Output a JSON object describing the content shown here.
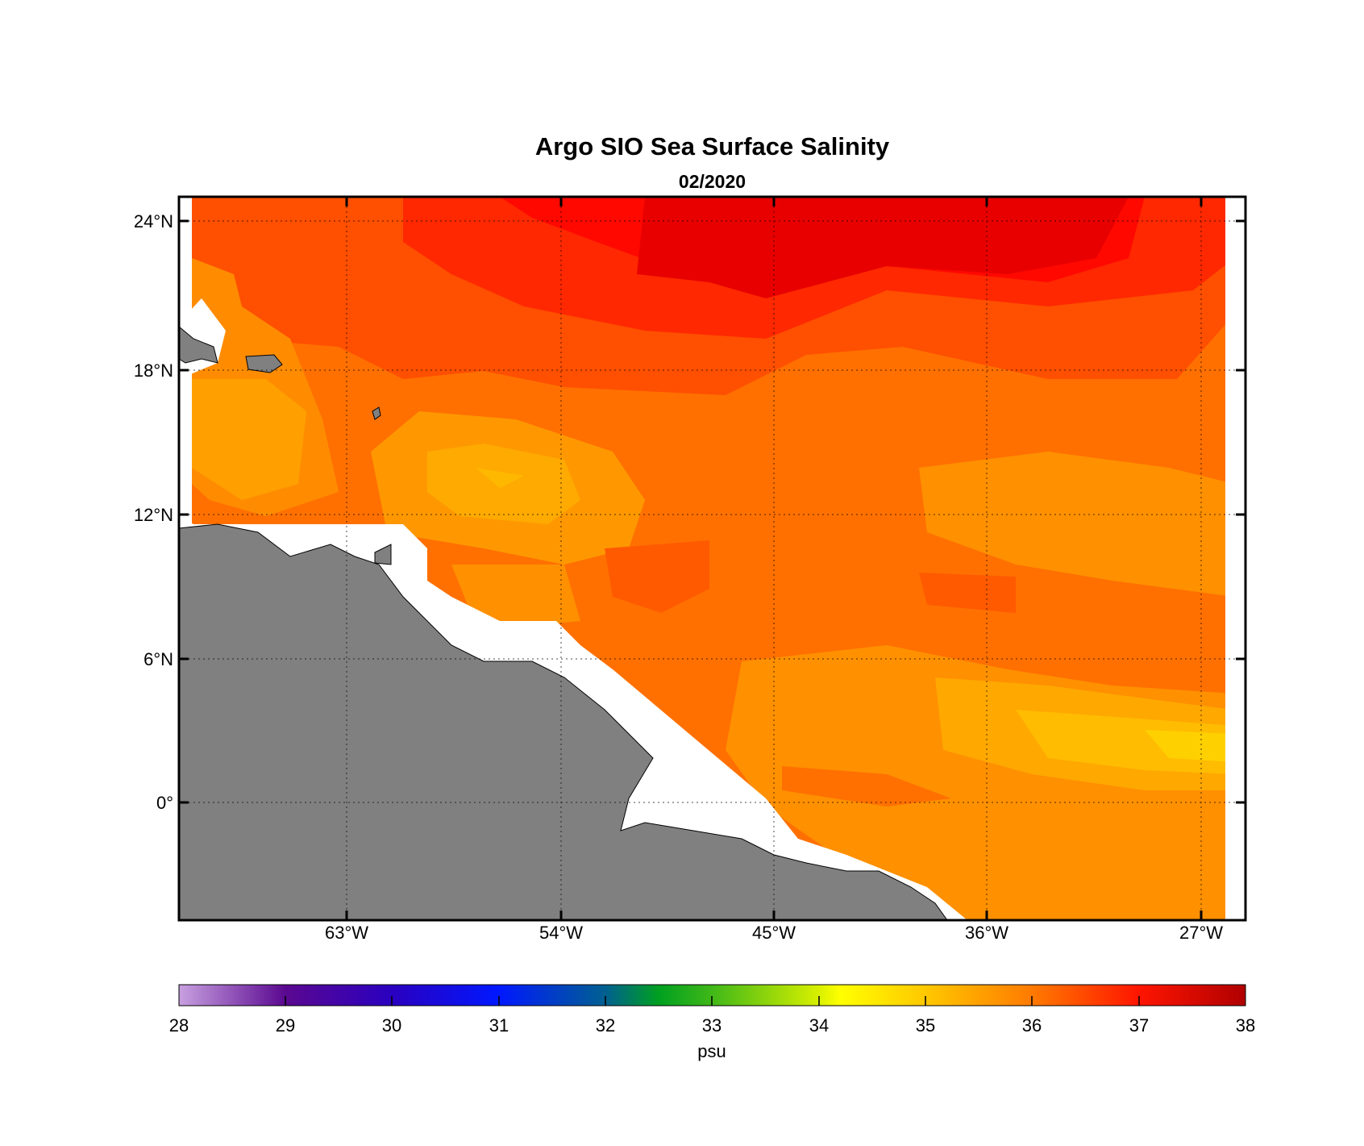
{
  "title": "Argo SIO Sea Surface Salinity",
  "subtitle": "02/2020",
  "map": {
    "lon_ticks": [
      "63°W",
      "54°W",
      "45°W",
      "36°W",
      "27°W"
    ],
    "lat_ticks": [
      "24°N",
      "18°N",
      "12°N",
      "6°N",
      "0°"
    ],
    "land_color": "#808080",
    "grid": "dotted"
  },
  "colorbar": {
    "ticks": [
      "28",
      "29",
      "30",
      "31",
      "32",
      "33",
      "34",
      "35",
      "36",
      "37",
      "38"
    ],
    "unit": "psu",
    "range": [
      28,
      38
    ]
  },
  "chart_data": {
    "type": "heatmap",
    "variable": "sea surface salinity",
    "unit": "psu",
    "lon_range": [
      -70,
      -25
    ],
    "lat_range": [
      -5,
      25
    ],
    "value_range_shown": [
      34.5,
      37.5
    ]
  }
}
